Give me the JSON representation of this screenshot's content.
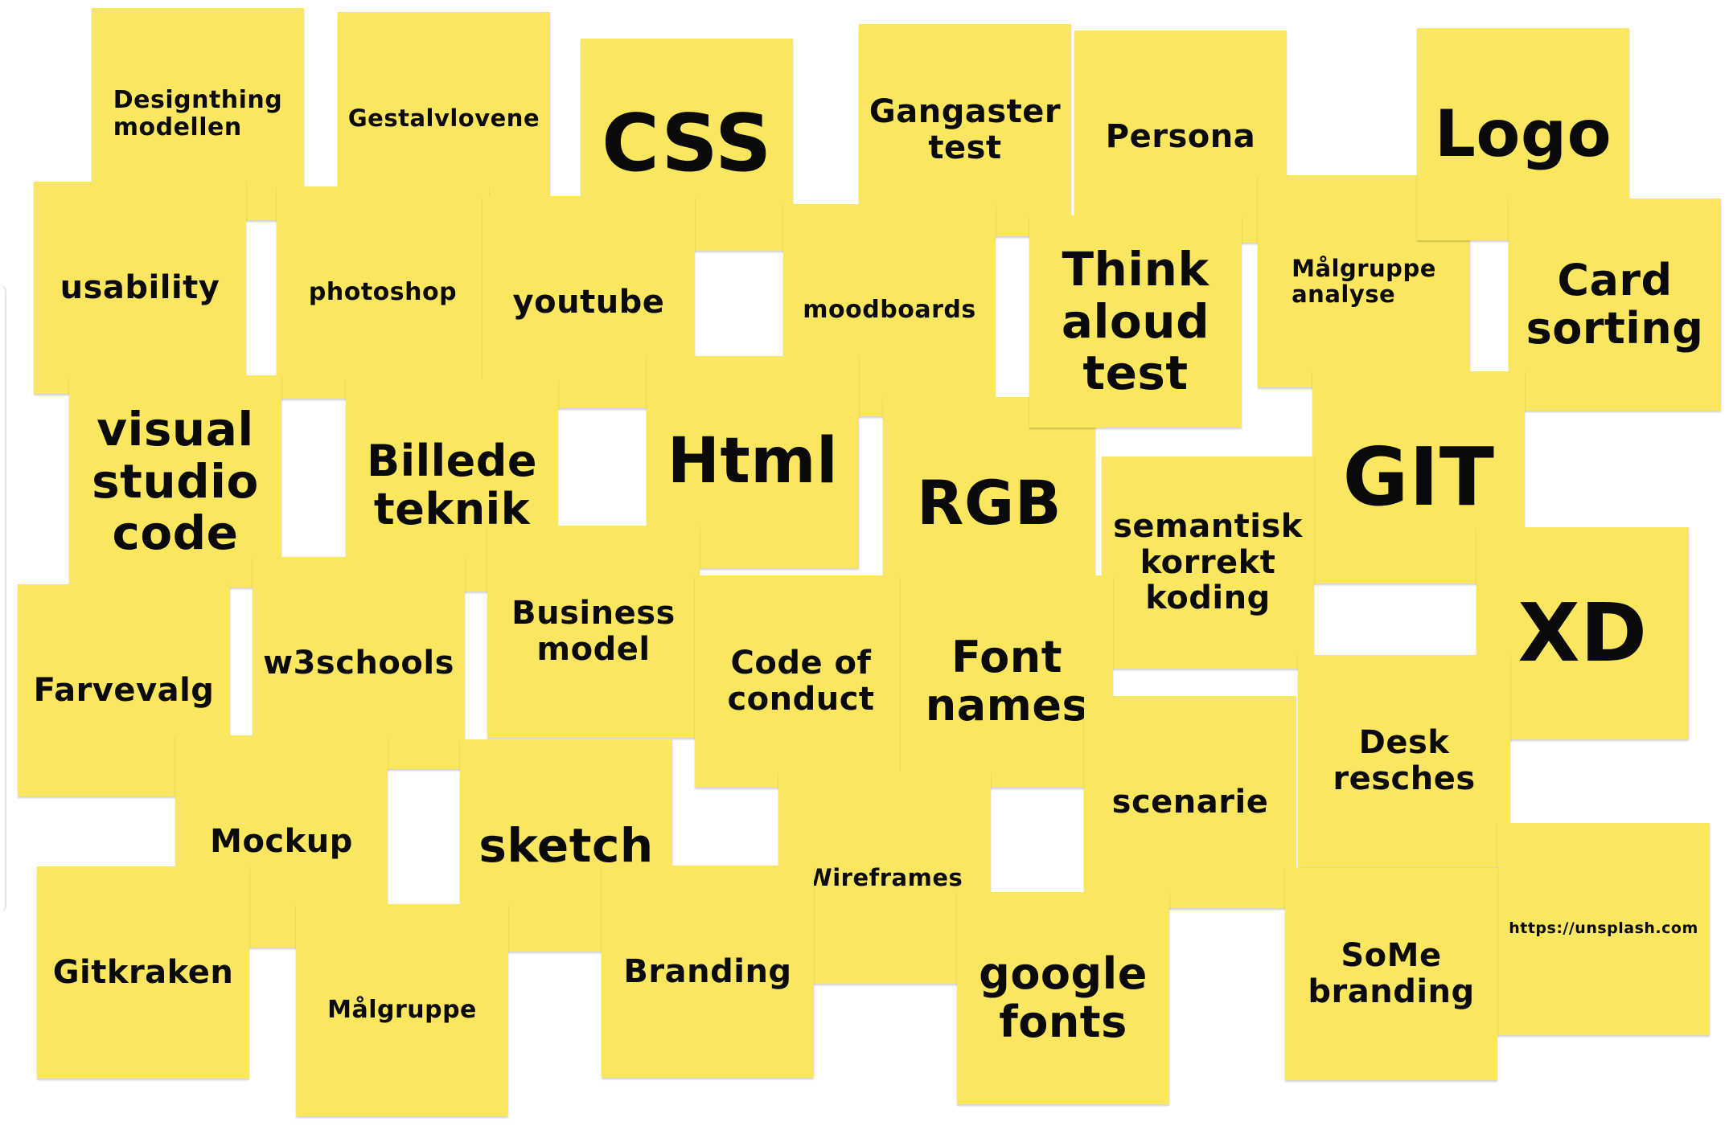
{
  "board": {
    "background": "#ffffff",
    "note_color": "#fbe75f",
    "notes": [
      {
        "label": "Designthing\nmodellen"
      },
      {
        "label": "Gestalvlovene"
      },
      {
        "label": "CSS"
      },
      {
        "label": "Gangaster\ntest"
      },
      {
        "label": "Persona"
      },
      {
        "label": "Logo"
      },
      {
        "label": "usability"
      },
      {
        "label": "photoshop"
      },
      {
        "label": "youtube"
      },
      {
        "label": "moodboards"
      },
      {
        "label": "Think\naloud\ntest"
      },
      {
        "label": "Målgruppe\nanalyse"
      },
      {
        "label": "Card\nsorting"
      },
      {
        "label": "visual\nstudio\ncode"
      },
      {
        "label": "Billede\nteknik"
      },
      {
        "label": "Html"
      },
      {
        "label": "RGB"
      },
      {
        "label": "semantisk\nkorrekt\nkoding"
      },
      {
        "label": "GIT"
      },
      {
        "label": "XD"
      },
      {
        "label": "Farvevalg"
      },
      {
        "label": "w3schools"
      },
      {
        "label": "Business\nmodel"
      },
      {
        "label": "Code of\nconduct"
      },
      {
        "label": "Font\nnames"
      },
      {
        "label": "scenarie"
      },
      {
        "label": "Desk\nresches"
      },
      {
        "label": "Mockup"
      },
      {
        "label": "sketch"
      },
      {
        "label": "Wireframes"
      },
      {
        "label": "Gitkraken"
      },
      {
        "label": "Målgruppe"
      },
      {
        "label": "Branding"
      },
      {
        "label": "google\nfonts"
      },
      {
        "label": "SoMe\nbranding"
      },
      {
        "label": "https://unsplash.com"
      }
    ]
  }
}
